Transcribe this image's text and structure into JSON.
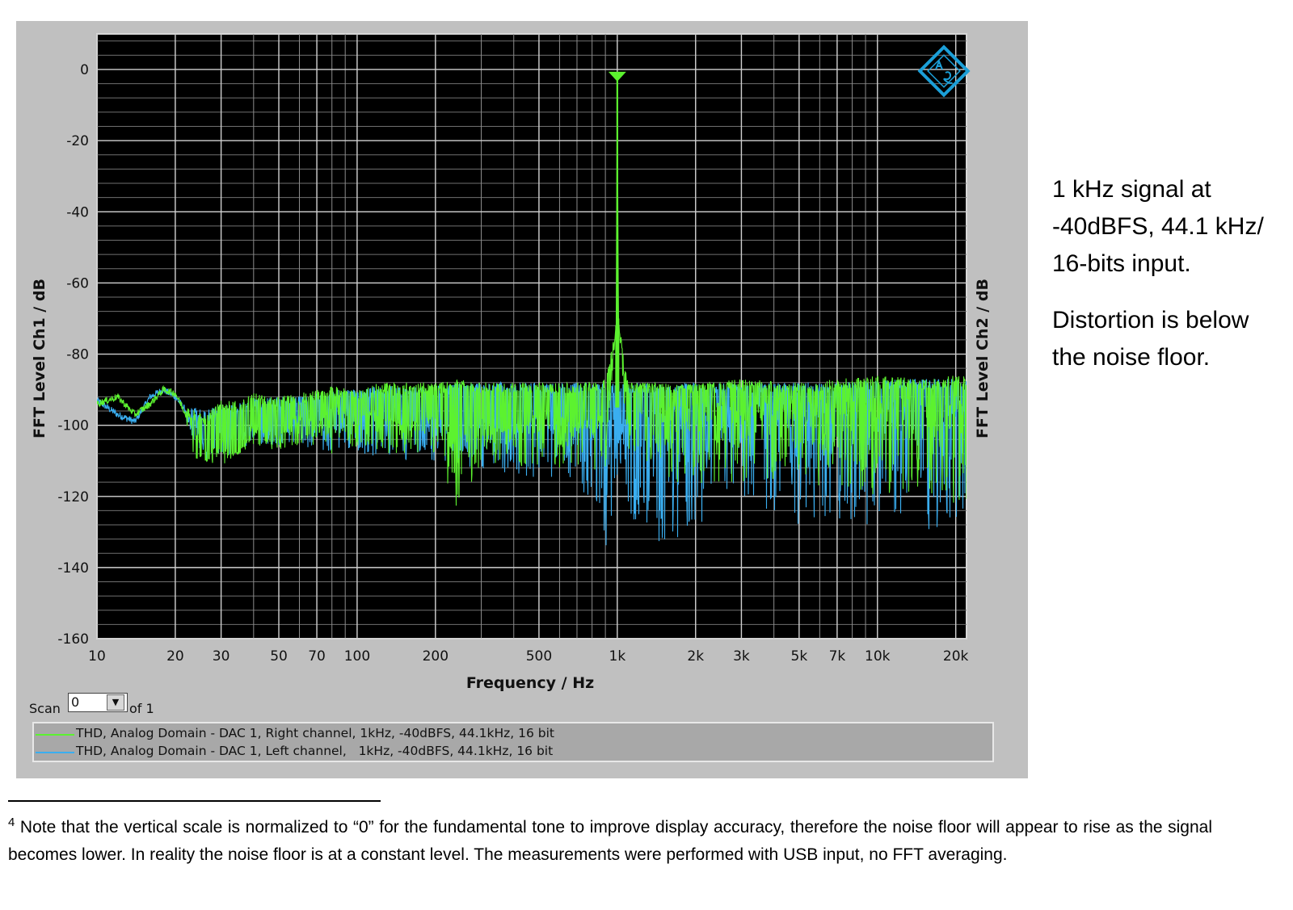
{
  "chart_data": {
    "type": "line",
    "xscale": "log",
    "xlabel": "Frequency / Hz",
    "ylabel": "FFT Level Ch1 / dB",
    "ylabel_right": "FFT Level Ch2 / dB",
    "xlim": [
      10,
      22000
    ],
    "ylim": [
      -160,
      10
    ],
    "grid": true,
    "x_tick_values": [
      10,
      20,
      30,
      50,
      70,
      100,
      200,
      500,
      1000,
      2000,
      3000,
      5000,
      7000,
      10000,
      20000
    ],
    "x_tick_labels": [
      "10",
      "20",
      "30",
      "50",
      "70",
      "100",
      "200",
      "500",
      "1k",
      "2k",
      "3k",
      "5k",
      "7k",
      "10k",
      "20k"
    ],
    "y_tick_values": [
      0,
      -20,
      -40,
      -60,
      -80,
      -100,
      -120,
      -140,
      -160
    ],
    "y_tick_labels": [
      "0",
      "-20",
      "-40",
      "-60",
      "-80",
      "-100",
      "-120",
      "-140",
      "-160"
    ],
    "legend_position": "bottom",
    "series": [
      {
        "name": "THD, Analog Domain - DAC 1, Right channel, 1kHz, -40dBFS, 44.1kHz, 16 bit",
        "color": "#5cf22f",
        "x": [
          10,
          12,
          14,
          16,
          18,
          20,
          22,
          24,
          26,
          30,
          35,
          40,
          50,
          60,
          70,
          80,
          100,
          120,
          150,
          200,
          250,
          300,
          400,
          500,
          700,
          900,
          990,
          1000,
          1010,
          1100,
          1500,
          2000,
          3000,
          5000,
          7000,
          10000,
          15000,
          20000
        ],
        "y": [
          -94,
          -92,
          -97,
          -94,
          -90,
          -91,
          -97,
          -102,
          -110,
          -104,
          -108,
          -100,
          -103,
          -96,
          -100,
          -94,
          -98,
          -95,
          -100,
          -97,
          -103,
          -98,
          -101,
          -96,
          -99,
          -97,
          -72,
          -2,
          -70,
          -97,
          -95,
          -94,
          -93,
          -92,
          -93,
          -92,
          -93,
          -91
        ],
        "upper": [
          -94,
          -92,
          -97,
          -94,
          -90,
          -91,
          -95,
          -96,
          -97,
          -93,
          -93,
          -91,
          -92,
          -91,
          -90,
          -89,
          -90,
          -88,
          -88,
          -88,
          -87,
          -88,
          -88,
          -88,
          -88,
          -87,
          -72,
          -2,
          -70,
          -88,
          -88,
          -88,
          -87,
          -88,
          -87,
          -86,
          -87,
          -86
        ],
        "lower": [
          -94,
          -92,
          -97,
          -94,
          -90,
          -95,
          -100,
          -113,
          -110,
          -112,
          -108,
          -106,
          -107,
          -106,
          -106,
          -108,
          -106,
          -108,
          -108,
          -108,
          -126,
          -110,
          -112,
          -112,
          -112,
          -113,
          -72,
          -2,
          -70,
          -113,
          -115,
          -118,
          -116,
          -118,
          -117,
          -120,
          -120,
          -122
        ]
      },
      {
        "name": "THD, Analog Domain - DAC 1, Left channel,   1kHz, -40dBFS, 44.1kHz, 16 bit",
        "color": "#3aaef0",
        "x": [
          10,
          12,
          14,
          16,
          18,
          20,
          22,
          24,
          26,
          30,
          35,
          40,
          50,
          60,
          70,
          80,
          100,
          120,
          150,
          200,
          250,
          300,
          400,
          500,
          700,
          900,
          1000,
          1100,
          1500,
          2000,
          3000,
          5000,
          7000,
          10000,
          15000,
          20000
        ],
        "y": [
          -93,
          -97,
          -99,
          -92,
          -90,
          -92,
          -96,
          -100,
          -104,
          -102,
          -104,
          -99,
          -101,
          -97,
          -99,
          -95,
          -97,
          -96,
          -99,
          -98,
          -101,
          -97,
          -100,
          -97,
          -99,
          -98,
          -98,
          -98,
          -96,
          -95,
          -94,
          -93,
          -94,
          -93,
          -94,
          -93
        ],
        "upper": [
          -93,
          -97,
          -99,
          -92,
          -90,
          -92,
          -94,
          -95,
          -96,
          -94,
          -94,
          -92,
          -92,
          -92,
          -91,
          -90,
          -90,
          -89,
          -89,
          -89,
          -88,
          -88,
          -88,
          -88,
          -88,
          -88,
          -88,
          -88,
          -88,
          -88,
          -88,
          -88,
          -88,
          -87,
          -87,
          -87
        ],
        "lower": [
          -93,
          -97,
          -99,
          -92,
          -90,
          -95,
          -100,
          -108,
          -110,
          -110,
          -107,
          -106,
          -106,
          -106,
          -107,
          -108,
          -108,
          -110,
          -110,
          -110,
          -112,
          -113,
          -114,
          -115,
          -115,
          -138,
          -115,
          -125,
          -135,
          -128,
          -122,
          -128,
          -128,
          -128,
          -130,
          -128
        ]
      }
    ]
  },
  "controls": {
    "scan_label": "Scan",
    "scan_value": "0",
    "scan_of": "of 1"
  },
  "side_note": {
    "line1": "1 kHz signal at",
    "line2": "-40dBFS, 44.1 kHz/",
    "line3": "16-bits input.",
    "line4": "Distortion is below",
    "line5": "the noise floor."
  },
  "footnote": {
    "marker": "4",
    "text": "Note that the vertical scale is normalized to “0” for the fundamental tone to improve display accuracy, therefore the noise floor will appear to rise as the signal becomes lower. In reality the noise floor is at a constant level. The measurements were performed with USB input, no FFT averaging."
  },
  "icons": {
    "logo": "rohde-schwarz-logo-icon",
    "dropdown": "dropdown-arrow-icon"
  },
  "colors": {
    "plot_background": "#000000",
    "panel_background": "#c0c0c0",
    "grid": "#9a9a9a",
    "logo": "#1b9fd8"
  }
}
